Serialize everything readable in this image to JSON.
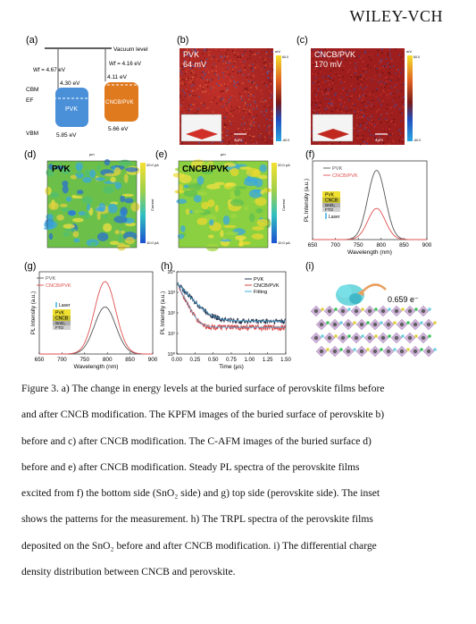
{
  "header": {
    "brand": "WILEY-VCH"
  },
  "panels": {
    "a": {
      "label": "(a)",
      "vacuum_level": "Vacuum level",
      "wf_left": "Wf = 4.67 eV",
      "wf_right": "Wf = 4.16 eV",
      "cbm_label": "CBM",
      "ef_label": "EF",
      "vbm_label": "VBM",
      "pvk_cbm": "4.30 eV",
      "pvk_vbm": "5.85 eV",
      "pvk_name": "PVK",
      "cncb_cbm": "4.11 eV",
      "cncb_vbm": "5.66 eV",
      "cncb_name": "CNCB/PVK",
      "colors": {
        "pvk": "#4a90d9",
        "cncb": "#e07a1f"
      }
    },
    "b": {
      "label": "(b)",
      "title": "PVK",
      "value": "64 mV",
      "scalebar": "4μm",
      "cbar_top": "mV",
      "cbar_max": "60.0",
      "cbar_min": "-60.0"
    },
    "c": {
      "label": "(c)",
      "title": "CNCB/PVK",
      "value": "170 mV",
      "scalebar": "4μm",
      "cbar_top": "mV",
      "cbar_max": "60.0",
      "cbar_min": "-60.0"
    },
    "d": {
      "label": "(d)",
      "title": "PVK",
      "cbar_max": "20.0 pA",
      "cbar_min": "10.0 pA",
      "cbar_label": "Current",
      "axis_unit": "μm"
    },
    "e": {
      "label": "(e)",
      "title": "CNCB/PVK",
      "cbar_max": "20.0 pA",
      "cbar_min": "10.0 pA",
      "cbar_label": "Current",
      "axis_unit": "μm"
    },
    "f": {
      "label": "(f)"
    },
    "g": {
      "label": "(g)"
    },
    "h": {
      "label": "(h)"
    },
    "i": {
      "label": "(i)",
      "charge": "0.659 e⁻"
    },
    "stack": {
      "layers": [
        "PVK",
        "CNCB",
        "SnO₂",
        "FTO"
      ],
      "laser": "Laser"
    }
  },
  "chart_data": [
    {
      "type": "line",
      "panel": "f",
      "xlabel": "Wavelength (nm)",
      "ylabel": "PL Intensity (a.u.)",
      "xlim": [
        650,
        900
      ],
      "xticks": [
        650,
        700,
        750,
        800,
        850,
        900
      ],
      "series": [
        {
          "name": "PVK",
          "color": "#555555",
          "peak_x": 790,
          "peak_y": 1.0,
          "fwhm": 45
        },
        {
          "name": "CNCB/PVK",
          "color": "#e05050",
          "peak_x": 790,
          "peak_y": 0.45,
          "fwhm": 45
        }
      ]
    },
    {
      "type": "line",
      "panel": "g",
      "xlabel": "Wavelength (nm)",
      "ylabel": "PL Intensity (a.u.)",
      "xlim": [
        650,
        900
      ],
      "xticks": [
        650,
        700,
        750,
        800,
        850,
        900
      ],
      "series": [
        {
          "name": "PVK",
          "color": "#555555",
          "peak_x": 795,
          "peak_y": 0.65,
          "fwhm": 55
        },
        {
          "name": "CNCB/PVK",
          "color": "#e05050",
          "peak_x": 795,
          "peak_y": 1.0,
          "fwhm": 55
        }
      ]
    },
    {
      "type": "scatter",
      "panel": "h",
      "xlabel": "Time (μs)",
      "ylabel": "PL Intensity (a.u.)",
      "xlim": [
        0,
        1.5
      ],
      "yscale": "log",
      "ylim": [
        1,
        10000
      ],
      "xticks": [
        "0.00",
        "0.25",
        "0.50",
        "0.75",
        "1.00",
        "1.25",
        "1.50"
      ],
      "yticks": [
        "10⁰",
        "10¹",
        "10²",
        "10³",
        "10⁴"
      ],
      "series": [
        {
          "name": "PVK",
          "color": "#2a3550",
          "y0": 3000,
          "tau": 0.11,
          "floor": 40
        },
        {
          "name": "CNCB/PVK",
          "color": "#d94040",
          "y0": 3000,
          "tau": 0.06,
          "floor": 20
        },
        {
          "name": "Fitting",
          "color": "#3ab0e0"
        }
      ]
    }
  ],
  "caption": {
    "lines": [
      "Figure 3. a) The change in energy levels at the buried surface of perovskite films before",
      "and after CNCB modification. The KPFM images of the buried surface of perovskite b)",
      "before and c) after CNCB modification. The C-AFM images of the buried surface d)",
      "before and e) after CNCB modification. Steady PL spectra of the perovskite films",
      "excited from f) the bottom side (SnO₂ side) and g) top side (perovskite side). The inset",
      "shows the patterns for the measurement. h) The TRPL spectra of the perovskite films",
      "deposited on the SnO₂ before and after CNCB modification. i) The differential charge",
      "density distribution between CNCB and perovskite."
    ]
  }
}
